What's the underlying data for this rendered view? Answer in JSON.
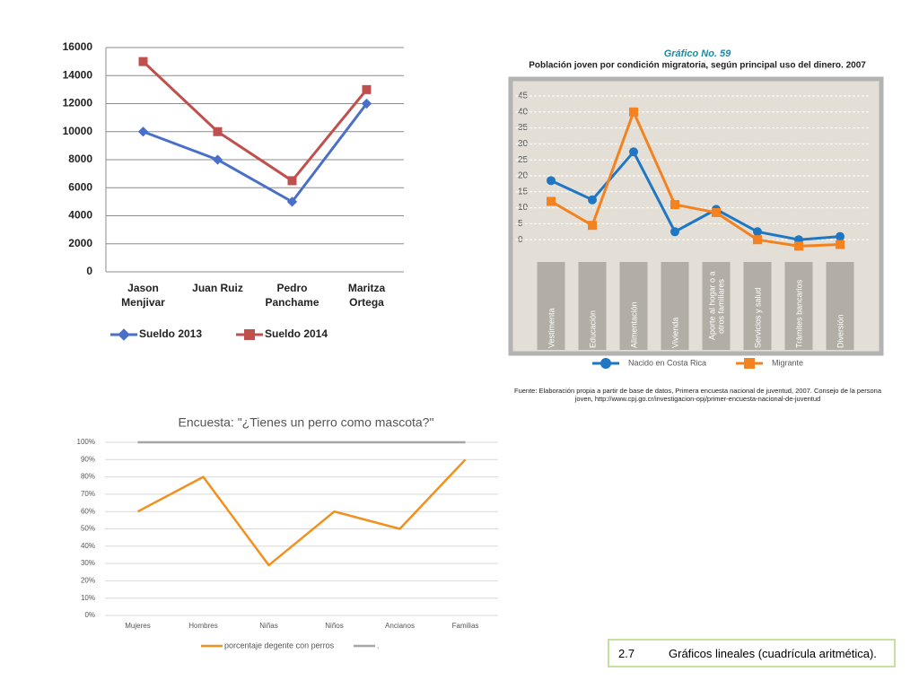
{
  "chart_data": [
    {
      "type": "line",
      "categories": [
        "Jason Menjivar",
        "Juan Ruiz",
        "Pedro Panchame",
        "Maritza Ortega"
      ],
      "series": [
        {
          "name": "Sueldo 2013",
          "color": "#4a6fc8",
          "marker": "diamond",
          "values": [
            10000,
            8000,
            5000,
            12000
          ]
        },
        {
          "name": "Sueldo 2014",
          "color": "#c0504d",
          "marker": "square",
          "values": [
            15000,
            10000,
            6500,
            13000
          ]
        }
      ],
      "ylim": [
        0,
        16000
      ],
      "yticks": [
        0,
        2000,
        4000,
        6000,
        8000,
        10000,
        12000,
        14000,
        16000
      ],
      "grid": true
    },
    {
      "type": "line",
      "title": "Gráfico No. 59",
      "subtitle": "Población joven por condición migratoria, según principal uso del dinero. 2007",
      "note": "Fuente: Elaboración propia a partir de base de datos, Primera encuesta nacional de juventud, 2007. Consejo de la persona joven, http://www.cpj.go.cr/investigacion-opj/primer-encuesta-nacional-de-juventud",
      "categories": [
        "Vestimenta",
        "Educación",
        "Alimentación",
        "Vivienda",
        "Aporte al hogar o a otros familiares",
        "Servicios y salud",
        "Trámites bancarios",
        "Diversión"
      ],
      "series": [
        {
          "name": "Nacido en Costa Rica",
          "color": "#1f77c4",
          "marker": "circle",
          "values": [
            18.5,
            12.5,
            27.5,
            2.5,
            9.5,
            2.5,
            0,
            1
          ]
        },
        {
          "name": "Migrante",
          "color": "#f58220",
          "marker": "square",
          "values": [
            12,
            4.5,
            40,
            11,
            8.5,
            0,
            -2,
            -1.5
          ]
        }
      ],
      "ylim": [
        -5,
        45
      ],
      "yticks": [
        0,
        5,
        10,
        15,
        20,
        25,
        30,
        35,
        40,
        45
      ],
      "grid": true
    },
    {
      "type": "line",
      "title": "Encuesta: \"¿Tienes un perro como mascota?\"",
      "categories": [
        "Mujeres",
        "Hombres",
        "Niñas",
        "Niños",
        "Ancianos",
        "Familias"
      ],
      "series": [
        {
          "name": "porcentaje degente con perros",
          "color": "#f0901e",
          "values": [
            60,
            80,
            29,
            60,
            50,
            90
          ]
        },
        {
          "name": ".",
          "color": "#a6a6a6",
          "values": [
            100,
            100,
            100,
            100,
            100,
            100
          ]
        }
      ],
      "ylim": [
        0,
        100
      ],
      "yticks": [
        {
          "value": 0,
          "label": "0%"
        },
        {
          "value": 10,
          "label": "10%"
        },
        {
          "value": 20,
          "label": "20%"
        },
        {
          "value": 30,
          "label": "30%"
        },
        {
          "value": 40,
          "label": "40%"
        },
        {
          "value": 50,
          "label": "50%"
        },
        {
          "value": 60,
          "label": "60%"
        },
        {
          "value": 70,
          "label": "70%"
        },
        {
          "value": 80,
          "label": "80%"
        },
        {
          "value": 90,
          "label": "90%"
        },
        {
          "value": 100,
          "label": "100%"
        }
      ],
      "grid": true
    }
  ],
  "caption": {
    "number": "2.7",
    "text": "Gráficos lineales (cuadrícula aritmética)."
  }
}
